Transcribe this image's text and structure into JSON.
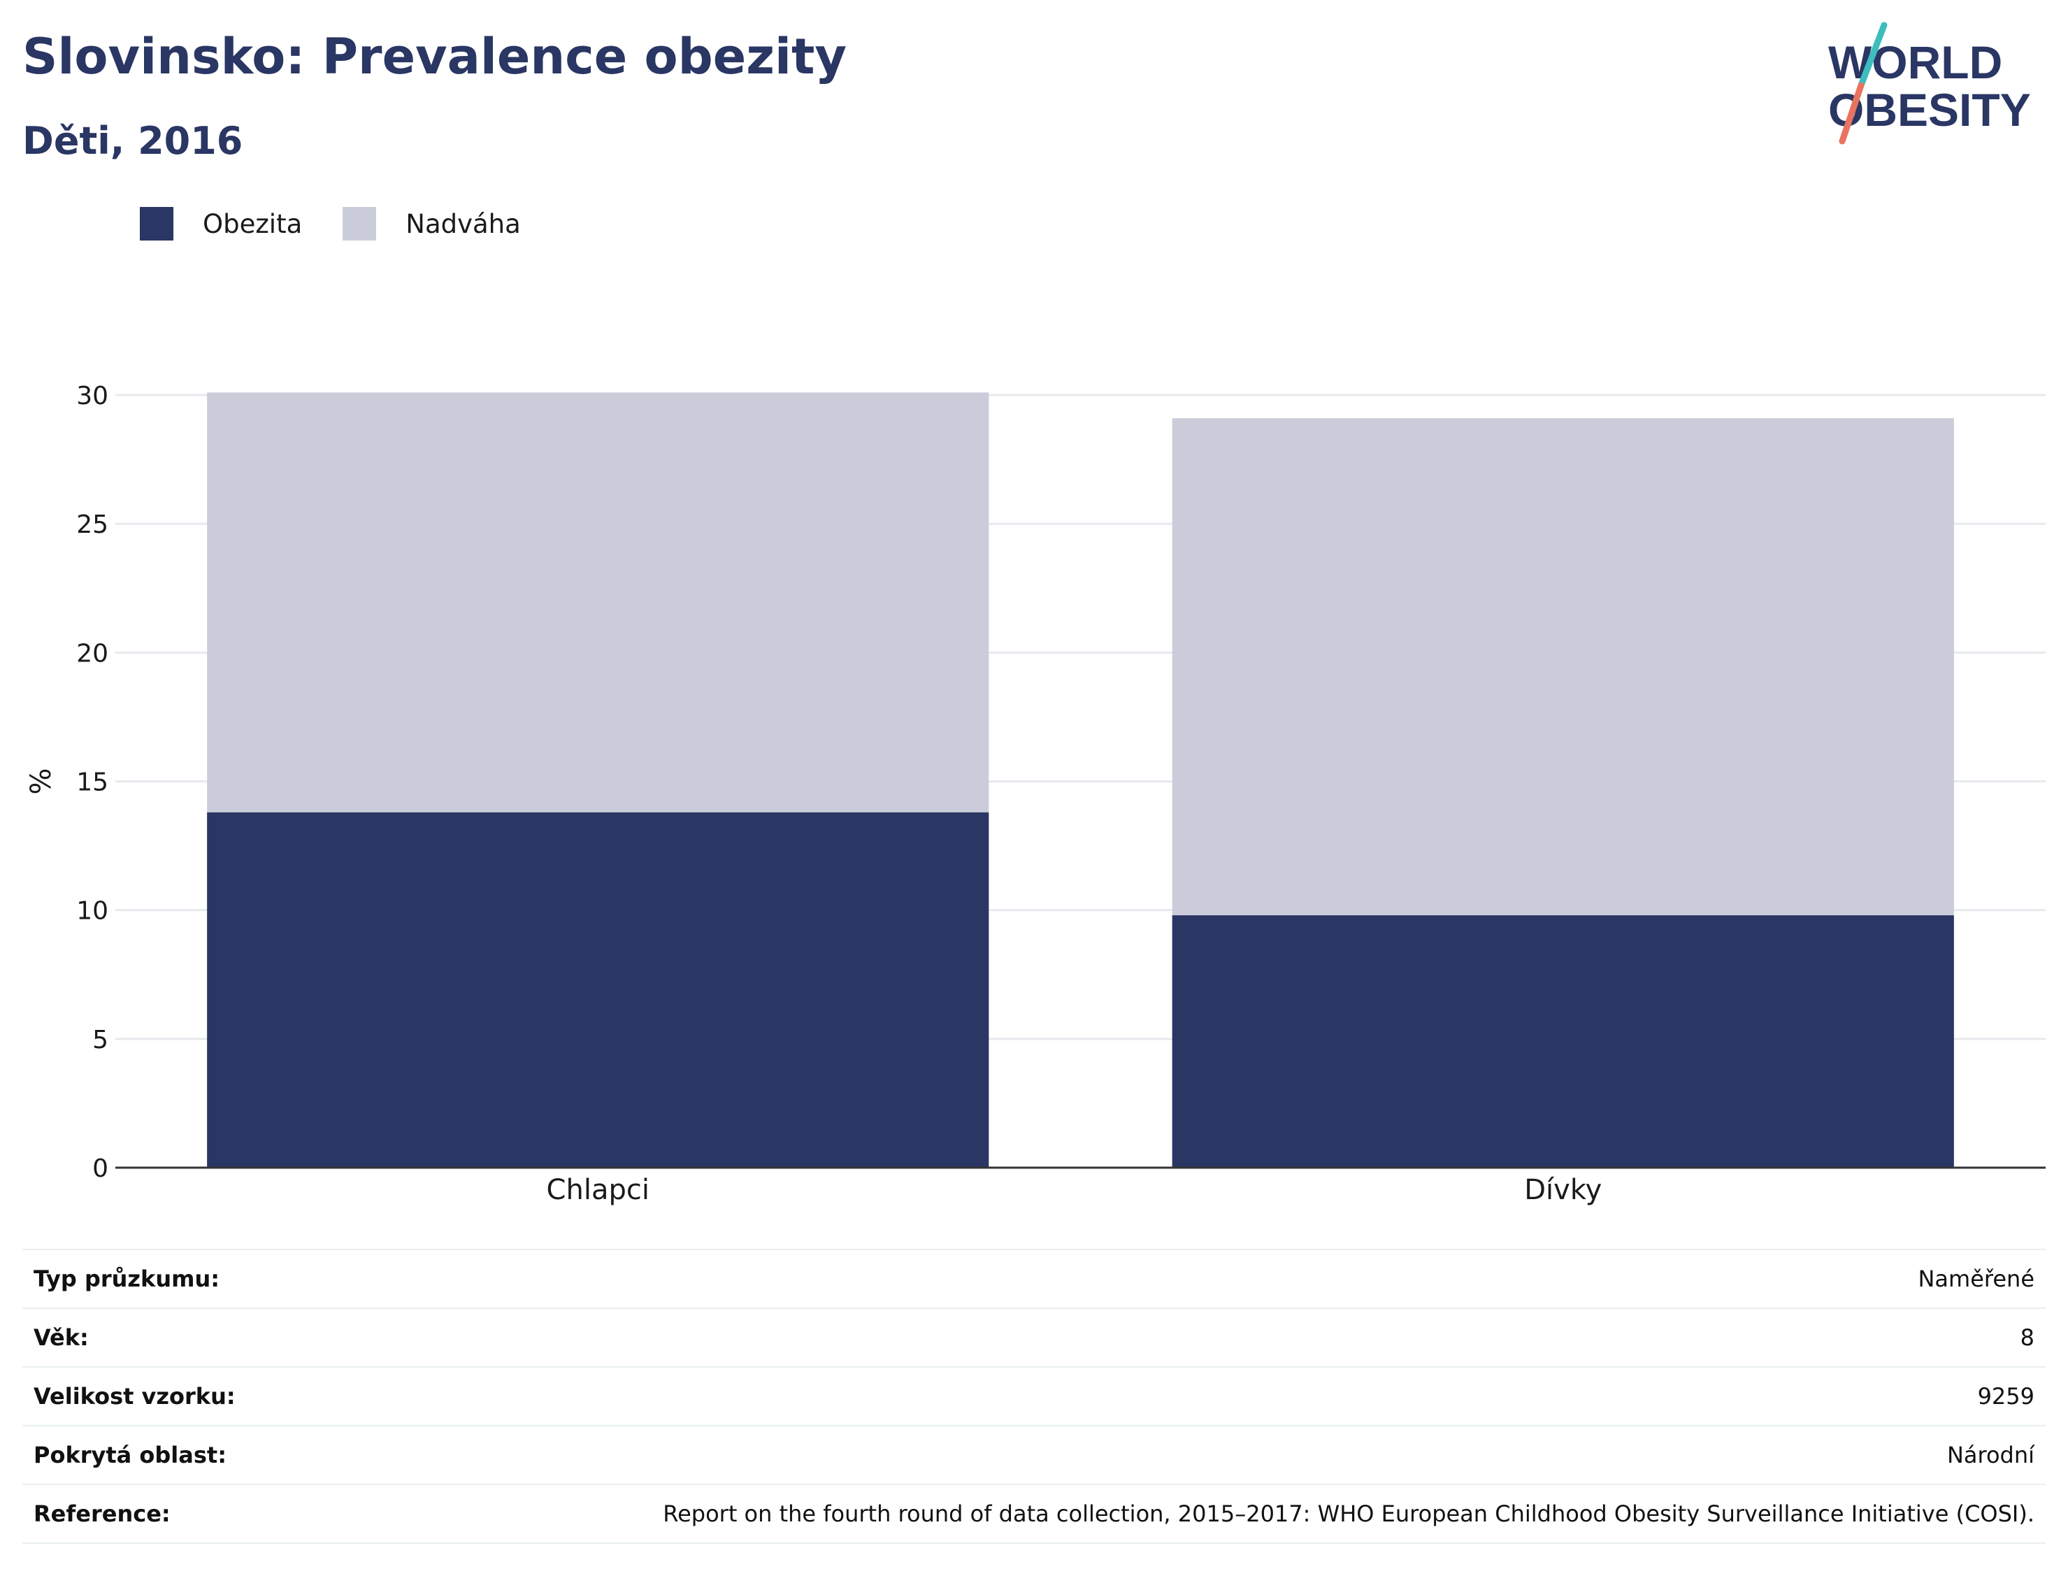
{
  "header": {
    "title": "Slovinsko: Prevalence obezity",
    "subtitle": "Děti, 2016"
  },
  "logo": {
    "line1": "WORLD",
    "line2": "OBESITY",
    "accent_colors": [
      "#3dbdbd",
      "#e8735f"
    ]
  },
  "colors": {
    "obesity": "#2a3663",
    "overweight": "#cacdd9",
    "text": "#2a3663"
  },
  "chart_data": {
    "type": "bar",
    "stacked": true,
    "categories": [
      "Chlapci",
      "Dívky"
    ],
    "series": [
      {
        "name": "Obezita",
        "values": [
          13.8,
          9.8
        ],
        "color": "#2a3663"
      },
      {
        "name": "Nadváha",
        "values": [
          16.3,
          19.3
        ],
        "color": "#cacdd9"
      }
    ],
    "ylabel": "%",
    "ylim": [
      0,
      30
    ],
    "yticks": [
      0,
      5,
      10,
      15,
      20,
      25,
      30
    ],
    "grid": true,
    "legend_position": "top-left"
  },
  "info": [
    {
      "key": "Typ průzkumu:",
      "value": "Naměřené"
    },
    {
      "key": "Věk:",
      "value": "8"
    },
    {
      "key": "Velikost vzorku:",
      "value": "9259"
    },
    {
      "key": "Pokrytá oblast:",
      "value": "Národní"
    },
    {
      "key": "Reference:",
      "value": "Report on the fourth round of data collection, 2015–2017: WHO European Childhood Obesity Surveillance Initiative (COSI)."
    }
  ]
}
